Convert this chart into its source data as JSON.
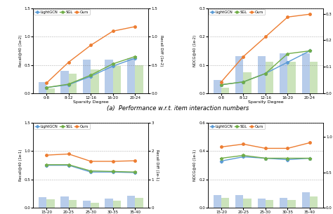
{
  "top_left": {
    "ylabel_left": "Recall@40 (1e-2)",
    "ylabel_right": "Recall Diff (1e-2)",
    "xlabel": "Sparsity Degree",
    "x_labels": [
      "0-8",
      "8-12",
      "12-16",
      "16-20",
      "20-24"
    ],
    "lightgcn": [
      0.1,
      0.15,
      0.3,
      0.48,
      0.62
    ],
    "sgl": [
      0.1,
      0.16,
      0.32,
      0.52,
      0.65
    ],
    "ours": [
      0.18,
      0.55,
      0.85,
      1.1,
      1.18
    ],
    "bars_blue": [
      0.2,
      0.4,
      0.6,
      0.6,
      0.62
    ],
    "bars_green": [
      0.08,
      0.35,
      0.42,
      0.48,
      0.5
    ],
    "ylim_left": [
      0,
      1.5
    ],
    "ylim_right": [
      0.0,
      1.5
    ],
    "yticks_left": [
      0.0,
      0.5,
      1.0,
      1.5
    ],
    "yticks_right": [
      0.0,
      0.5,
      1.0,
      1.5
    ]
  },
  "top_right": {
    "ylabel_left": "NDCG@40 (1e-2)",
    "ylabel_right": "NDCG Diff. (1e-2)",
    "xlabel": "Sparsity Degree",
    "x_labels": [
      "0-8",
      "8-12",
      "12-16",
      "16-20",
      "20-24"
    ],
    "lightgcn": [
      0.03,
      0.04,
      0.07,
      0.11,
      0.15
    ],
    "sgl": [
      0.03,
      0.04,
      0.07,
      0.14,
      0.15
    ],
    "ours": [
      0.04,
      0.13,
      0.2,
      0.27,
      0.28
    ],
    "bars_blue": [
      0.05,
      0.14,
      0.14,
      0.15,
      0.15
    ],
    "bars_green": [
      0.02,
      0.08,
      0.12,
      0.12,
      0.12
    ],
    "ylim_left": [
      0,
      0.3
    ],
    "ylim_right": [
      0.0,
      0.32
    ],
    "yticks_left": [
      0.0,
      0.1,
      0.2,
      0.3
    ],
    "yticks_right": [
      0.0,
      0.1,
      0.2,
      0.3
    ]
  },
  "bottom_left": {
    "ylabel_left": "Recall@40 (1e-1)",
    "ylabel_right": "Recall Diff (1e-1)",
    "xlabel": "Sparsity Degree",
    "x_labels": [
      "15-20",
      "20-25",
      "25-30",
      "30-35",
      "35-40"
    ],
    "lightgcn": [
      0.75,
      0.75,
      0.63,
      0.63,
      0.62
    ],
    "sgl": [
      0.76,
      0.76,
      0.65,
      0.64,
      0.63
    ],
    "ours": [
      0.93,
      0.95,
      0.82,
      0.82,
      0.83
    ],
    "bars_blue": [
      0.37,
      0.4,
      0.25,
      0.33,
      0.43
    ],
    "bars_green": [
      0.3,
      0.28,
      0.17,
      0.24,
      0.35
    ],
    "ylim_left": [
      0,
      1.5
    ],
    "ylim_right": [
      0.0,
      3.0
    ],
    "yticks_left": [
      0.0,
      0.5,
      1.0,
      1.5
    ],
    "yticks_right": [
      0,
      1,
      2,
      3
    ]
  },
  "bottom_right": {
    "ylabel_left": "NDCG@40 (1e-1)",
    "ylabel_right": "NDCG Diff (1e-1)",
    "xlabel": "Sparsity Degree",
    "x_labels": [
      "15-20",
      "20-25",
      "25-30",
      "30-35",
      "35-40"
    ],
    "lightgcn": [
      0.33,
      0.36,
      0.35,
      0.34,
      0.35
    ],
    "sgl": [
      0.35,
      0.37,
      0.35,
      0.35,
      0.35
    ],
    "ours": [
      0.43,
      0.45,
      0.42,
      0.42,
      0.46
    ],
    "bars_blue": [
      0.18,
      0.18,
      0.13,
      0.14,
      0.22
    ],
    "bars_green": [
      0.14,
      0.13,
      0.11,
      0.11,
      0.16
    ],
    "ylim_left": [
      0,
      0.6
    ],
    "ylim_right": [
      0.0,
      1.2
    ],
    "yticks_left": [
      0.0,
      0.2,
      0.4,
      0.6
    ],
    "yticks_right": [
      0.0,
      0.5,
      1.0
    ]
  },
  "caption": "(a)  Performance w.r.t. item interaction numbers",
  "colors": {
    "lightgcn": "#5b9bd5",
    "sgl": "#70ad47",
    "ours": "#ed7d31",
    "bar_blue": "#afc7e8",
    "bar_green": "#c6e0b4"
  },
  "legend_labels": [
    "LightGCN",
    "SGL",
    "Ours"
  ],
  "fig_width": 4.74,
  "fig_height": 3.05,
  "dpi": 100
}
